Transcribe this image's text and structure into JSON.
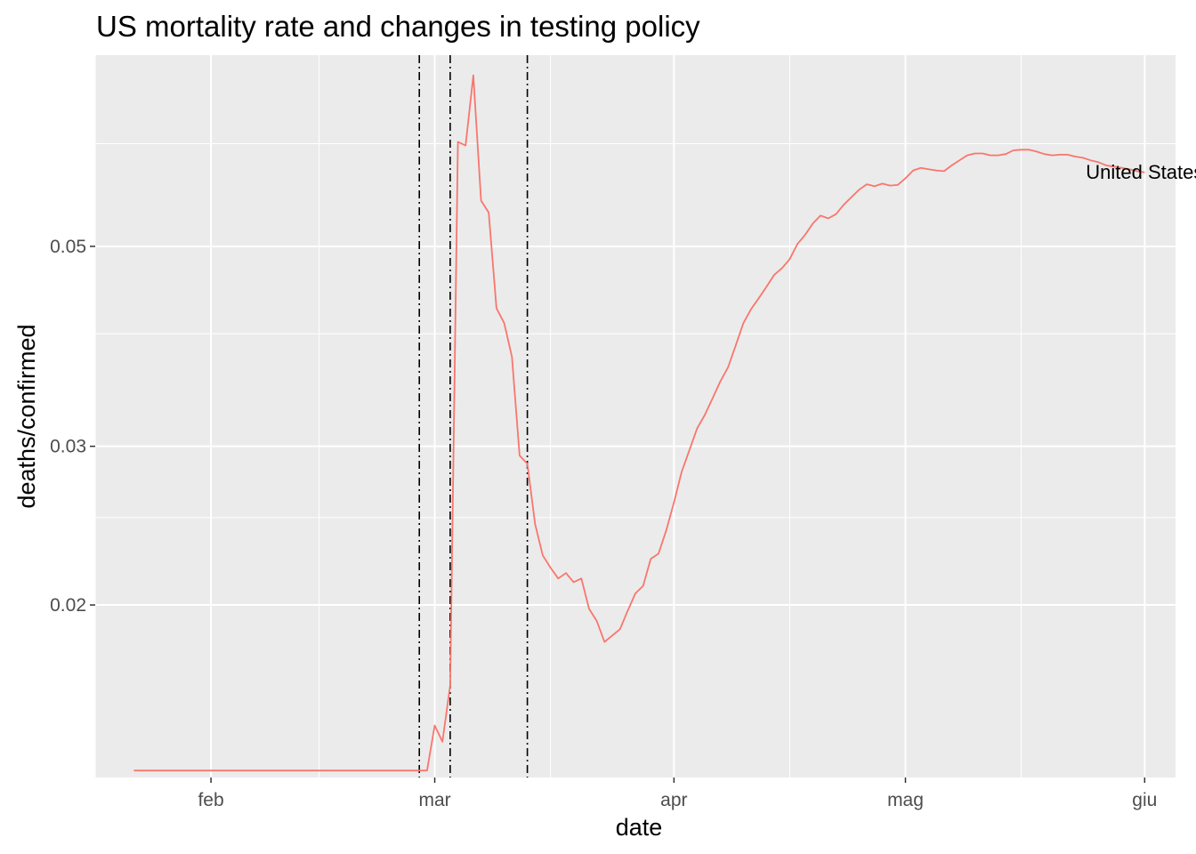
{
  "chart_data": {
    "type": "line",
    "title": "US mortality rate and changes in testing policy",
    "xlabel": "date",
    "ylabel": "deaths/confirmed",
    "y_scale": "log",
    "ylim": [
      0.01287,
      0.0815
    ],
    "y_ticks": [
      0.02,
      0.03,
      0.05
    ],
    "y_tick_labels": [
      "0.02",
      "0.03",
      "0.05"
    ],
    "y_minor_ticks": [
      0.025,
      0.04,
      0.065
    ],
    "xlim": [
      "2020-01-17",
      "2020-06-05"
    ],
    "x_ticks": [
      "2020-02-01",
      "2020-03-01",
      "2020-04-01",
      "2020-05-01",
      "2020-06-01"
    ],
    "x_tick_labels": [
      "feb",
      "mar",
      "apr",
      "mag",
      "giu"
    ],
    "x_minor_ticks": [
      "2020-01-17",
      "2020-02-15",
      "2020-03-16",
      "2020-04-16",
      "2020-05-16"
    ],
    "grid": true,
    "legend": "none",
    "vlines": [
      "2020-02-28",
      "2020-03-03",
      "2020-03-13"
    ],
    "series": [
      {
        "name": "United States",
        "color": "#F8766D",
        "points": [
          [
            "2020-01-22",
            0.0131
          ],
          [
            "2020-02-28",
            0.0131
          ],
          [
            "2020-02-29",
            0.0131
          ],
          [
            "2020-03-01",
            0.0147
          ],
          [
            "2020-03-02",
            0.0141
          ],
          [
            "2020-03-03",
            0.0163
          ],
          [
            "2020-03-04",
            0.0653
          ],
          [
            "2020-03-05",
            0.0647
          ],
          [
            "2020-03-06",
            0.0774
          ],
          [
            "2020-03-07",
            0.0562
          ],
          [
            "2020-03-08",
            0.0545
          ],
          [
            "2020-03-09",
            0.0427
          ],
          [
            "2020-03-10",
            0.0411
          ],
          [
            "2020-03-11",
            0.0377
          ],
          [
            "2020-03-12",
            0.0293
          ],
          [
            "2020-03-13",
            0.0287
          ],
          [
            "2020-03-14",
            0.0246
          ],
          [
            "2020-03-15",
            0.0227
          ],
          [
            "2020-03-16",
            0.022
          ],
          [
            "2020-03-17",
            0.0214
          ],
          [
            "2020-03-18",
            0.0217
          ],
          [
            "2020-03-19",
            0.0212
          ],
          [
            "2020-03-20",
            0.0214
          ],
          [
            "2020-03-21",
            0.0198
          ],
          [
            "2020-03-22",
            0.0192
          ],
          [
            "2020-03-23",
            0.0182
          ],
          [
            "2020-03-24",
            0.0185
          ],
          [
            "2020-03-25",
            0.0188
          ],
          [
            "2020-03-26",
            0.0197
          ],
          [
            "2020-03-27",
            0.0206
          ],
          [
            "2020-03-28",
            0.021
          ],
          [
            "2020-03-29",
            0.0225
          ],
          [
            "2020-03-30",
            0.0228
          ],
          [
            "2020-03-31",
            0.0242
          ],
          [
            "2020-04-01",
            0.026
          ],
          [
            "2020-04-02",
            0.0281
          ],
          [
            "2020-04-03",
            0.0297
          ],
          [
            "2020-04-04",
            0.0314
          ],
          [
            "2020-04-05",
            0.0325
          ],
          [
            "2020-04-06",
            0.0339
          ],
          [
            "2020-04-07",
            0.0354
          ],
          [
            "2020-04-08",
            0.0367
          ],
          [
            "2020-04-09",
            0.0388
          ],
          [
            "2020-04-10",
            0.0411
          ],
          [
            "2020-04-11",
            0.0426
          ],
          [
            "2020-04-12",
            0.0438
          ],
          [
            "2020-04-13",
            0.0451
          ],
          [
            "2020-04-14",
            0.0465
          ],
          [
            "2020-04-15",
            0.0473
          ],
          [
            "2020-04-16",
            0.0484
          ],
          [
            "2020-04-17",
            0.0503
          ],
          [
            "2020-04-18",
            0.0515
          ],
          [
            "2020-04-19",
            0.053
          ],
          [
            "2020-04-20",
            0.0541
          ],
          [
            "2020-04-21",
            0.0537
          ],
          [
            "2020-04-22",
            0.0543
          ],
          [
            "2020-04-23",
            0.0556
          ],
          [
            "2020-04-24",
            0.0567
          ],
          [
            "2020-04-25",
            0.0578
          ],
          [
            "2020-04-26",
            0.0586
          ],
          [
            "2020-04-27",
            0.0583
          ],
          [
            "2020-04-28",
            0.0587
          ],
          [
            "2020-04-29",
            0.0584
          ],
          [
            "2020-04-30",
            0.0585
          ],
          [
            "2020-05-01",
            0.0595
          ],
          [
            "2020-05-02",
            0.0607
          ],
          [
            "2020-05-03",
            0.0611
          ],
          [
            "2020-05-04",
            0.0609
          ],
          [
            "2020-05-05",
            0.0607
          ],
          [
            "2020-05-06",
            0.0606
          ],
          [
            "2020-05-07",
            0.0615
          ],
          [
            "2020-05-08",
            0.0623
          ],
          [
            "2020-05-09",
            0.0631
          ],
          [
            "2020-05-10",
            0.0634
          ],
          [
            "2020-05-11",
            0.0634
          ],
          [
            "2020-05-12",
            0.0631
          ],
          [
            "2020-05-13",
            0.0631
          ],
          [
            "2020-05-14",
            0.0633
          ],
          [
            "2020-05-15",
            0.0639
          ],
          [
            "2020-05-16",
            0.064
          ],
          [
            "2020-05-17",
            0.064
          ],
          [
            "2020-05-18",
            0.0637
          ],
          [
            "2020-05-19",
            0.0633
          ],
          [
            "2020-05-20",
            0.0631
          ],
          [
            "2020-05-21",
            0.0632
          ],
          [
            "2020-05-22",
            0.0632
          ],
          [
            "2020-05-23",
            0.0629
          ],
          [
            "2020-05-24",
            0.0627
          ],
          [
            "2020-05-25",
            0.0623
          ],
          [
            "2020-05-26",
            0.062
          ],
          [
            "2020-05-27",
            0.0615
          ],
          [
            "2020-05-28",
            0.0613
          ],
          [
            "2020-05-29",
            0.0611
          ],
          [
            "2020-05-30",
            0.0609
          ],
          [
            "2020-05-31",
            0.0606
          ],
          [
            "2020-06-01",
            0.0604
          ]
        ]
      }
    ]
  }
}
